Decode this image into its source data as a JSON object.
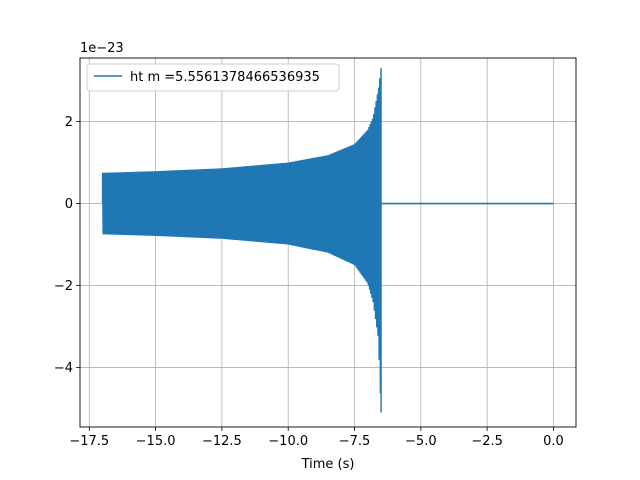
{
  "chart_data": {
    "type": "line",
    "title": "",
    "xlabel": "Time (s)",
    "ylabel": "",
    "offset_text": "1e−23",
    "xlim": [
      -17.85,
      0.85
    ],
    "ylim": [
      -5.45,
      3.55
    ],
    "grid": true,
    "legend_placement": "top-left",
    "x_ticks": [
      -17.5,
      -15.0,
      -12.5,
      -10.0,
      -7.5,
      -5.0,
      -2.5,
      0.0
    ],
    "x_tick_labels": [
      "−17.5",
      "−15.0",
      "−12.5",
      "−10.0",
      "−7.5",
      "−5.0",
      "−2.5",
      "0.0"
    ],
    "y_ticks": [
      -4,
      -2,
      0,
      2
    ],
    "y_tick_labels": [
      "−4",
      "−2",
      "0",
      "2"
    ],
    "series": [
      {
        "name": "ht m =5.5561378466536935",
        "color": "#1f77b4",
        "t_start": -17.0,
        "t_merger": -6.5,
        "t_end": 0.0,
        "envelope_upper": [
          [
            -17.0,
            0.75
          ],
          [
            -15.0,
            0.79
          ],
          [
            -12.5,
            0.86
          ],
          [
            -10.0,
            1.0
          ],
          [
            -8.5,
            1.18
          ],
          [
            -7.5,
            1.45
          ],
          [
            -7.0,
            1.8
          ],
          [
            -6.8,
            2.1
          ],
          [
            -6.6,
            2.8
          ],
          [
            -6.5,
            3.3
          ]
        ],
        "envelope_lower": [
          [
            -17.0,
            -0.75
          ],
          [
            -15.0,
            -0.79
          ],
          [
            -12.5,
            -0.86
          ],
          [
            -10.0,
            -1.0
          ],
          [
            -8.5,
            -1.2
          ],
          [
            -7.5,
            -1.5
          ],
          [
            -7.0,
            -1.95
          ],
          [
            -6.8,
            -2.4
          ],
          [
            -6.6,
            -3.3
          ],
          [
            -6.5,
            -5.1
          ]
        ],
        "post_merger_value": 0.0
      }
    ]
  }
}
